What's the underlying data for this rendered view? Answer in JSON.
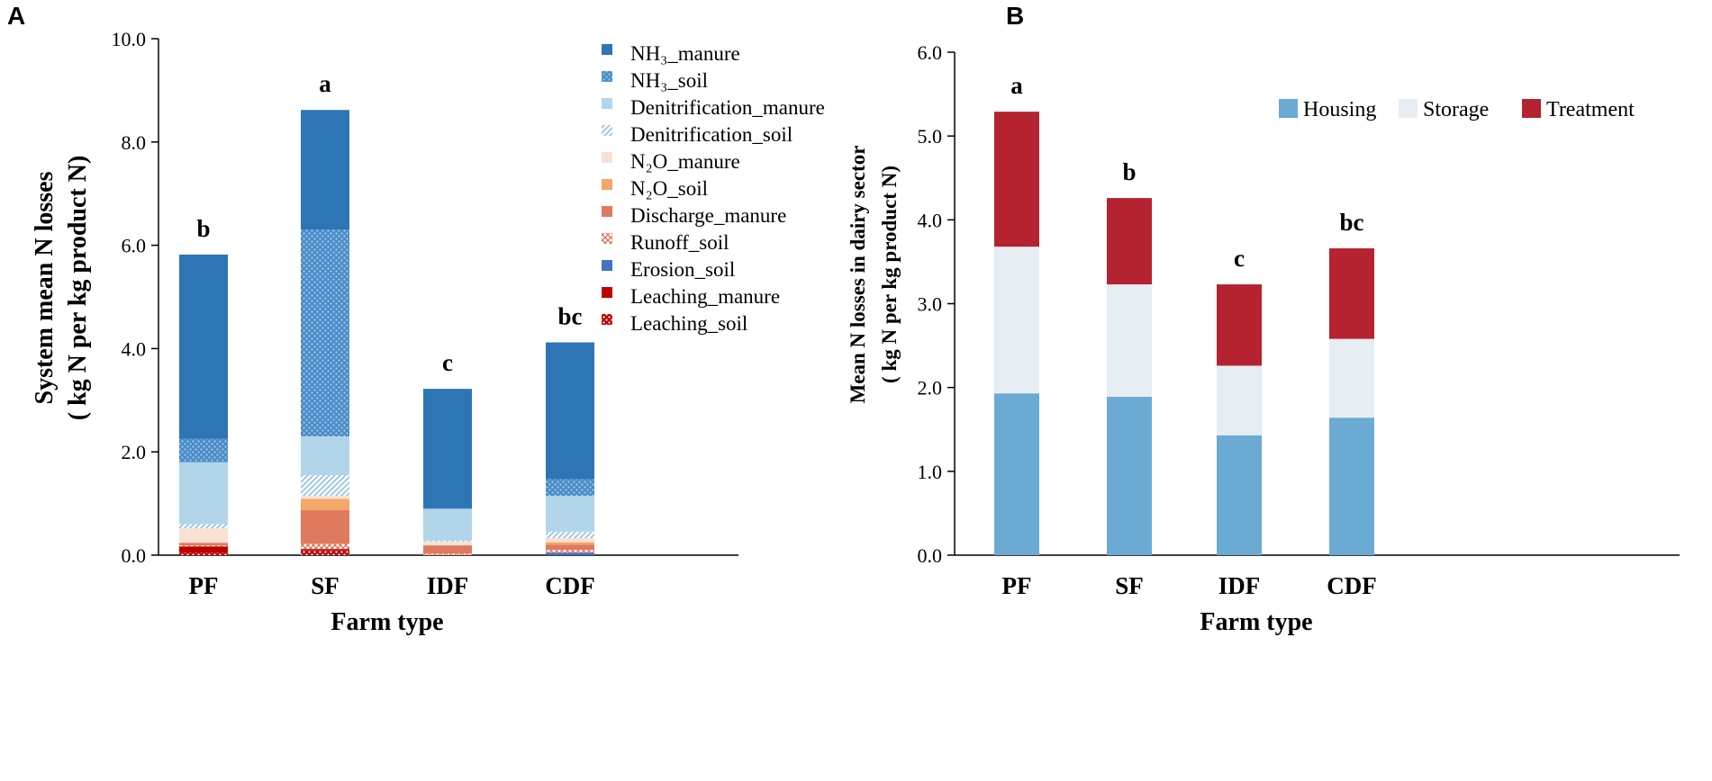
{
  "chart_data": [
    {
      "panel": "A",
      "type": "bar",
      "stacked": true,
      "xlabel": "Farm type",
      "ylabel": [
        "System mean N losses",
        "( kg N per kg product N)"
      ],
      "ylim": [
        0,
        10
      ],
      "yticks": [
        "0.0",
        "2.0",
        "4.0",
        "6.0",
        "8.0",
        "10.0"
      ],
      "categories": [
        "PF",
        "SF",
        "IDF",
        "CDF"
      ],
      "significance": [
        "b",
        "a",
        "c",
        "bc"
      ],
      "legend_position": "top-right",
      "series": [
        {
          "name": "Leaching_soil",
          "label": "Leaching_soil",
          "pattern": "dots",
          "color": "#c00000",
          "values": [
            0.05,
            0.1,
            0.0,
            0.0
          ]
        },
        {
          "name": "Leaching_manure",
          "label": "Leaching_manure",
          "pattern": "solid",
          "color": "#c00000",
          "values": [
            0.12,
            0.02,
            0.0,
            0.0
          ]
        },
        {
          "name": "Erosion_soil",
          "label": "Erosion_soil",
          "pattern": "solid",
          "color": "#4472c4",
          "values": [
            0.0,
            0.0,
            0.0,
            0.05
          ]
        },
        {
          "name": "Runoff_soil",
          "label": "Runoff_soil",
          "pattern": "crosshatch",
          "color": "#e06a50",
          "values": [
            0.02,
            0.1,
            0.03,
            0.05
          ]
        },
        {
          "name": "Discharge_manure",
          "label": "Discharge_manure",
          "pattern": "solid",
          "color": "#e07a5f",
          "values": [
            0.05,
            0.65,
            0.16,
            0.1
          ]
        },
        {
          "name": "N2O_soil",
          "label": "N₂O_soil",
          "pattern": "solid",
          "color": "#f4a76b",
          "values": [
            0.0,
            0.22,
            0.0,
            0.05
          ]
        },
        {
          "name": "N2O_manure",
          "label": "N₂O_manure",
          "pattern": "solid",
          "color": "#fbe0d4",
          "values": [
            0.28,
            0.06,
            0.07,
            0.08
          ]
        },
        {
          "name": "Denitrification_soil",
          "label": "Denitrification_soil",
          "pattern": "diagonal",
          "color": "#9ec8e5",
          "values": [
            0.08,
            0.4,
            0.02,
            0.12
          ]
        },
        {
          "name": "Denitrification_manure",
          "label": "Denitrification_manure",
          "pattern": "solid",
          "color": "#b3d5ea",
          "values": [
            1.2,
            0.75,
            0.62,
            0.7
          ]
        },
        {
          "name": "NH3_soil",
          "label": "NH₃_soil",
          "pattern": "dots",
          "color": "#2e75b6",
          "values": [
            0.45,
            4.0,
            0.0,
            0.32
          ]
        },
        {
          "name": "NH3_manure",
          "label": "NH₃_manure",
          "pattern": "solid",
          "color": "#2e75b6",
          "values": [
            3.57,
            2.32,
            2.32,
            2.65
          ]
        }
      ]
    },
    {
      "panel": "B",
      "type": "bar",
      "stacked": true,
      "xlabel": "Farm type",
      "ylabel": [
        "Mean N losses in dairy sector",
        "( kg N per kg product N)"
      ],
      "ylim": [
        0,
        6
      ],
      "yticks": [
        "0.0",
        "1.0",
        "2.0",
        "3.0",
        "4.0",
        "5.0",
        "6.0"
      ],
      "categories": [
        "PF",
        "SF",
        "IDF",
        "CDF"
      ],
      "significance": [
        "a",
        "b",
        "c",
        "bc"
      ],
      "legend_position": "top",
      "series": [
        {
          "name": "Housing",
          "label": "Housing",
          "color": "#6aaad3",
          "values": [
            1.93,
            1.89,
            1.43,
            1.64
          ]
        },
        {
          "name": "Storage",
          "label": "Storage",
          "color": "#e6eef3",
          "values": [
            1.75,
            1.34,
            0.83,
            0.94
          ]
        },
        {
          "name": "Treatment",
          "label": "Treatment",
          "color": "#b52330",
          "values": [
            1.61,
            1.03,
            0.97,
            1.08
          ]
        }
      ]
    }
  ]
}
